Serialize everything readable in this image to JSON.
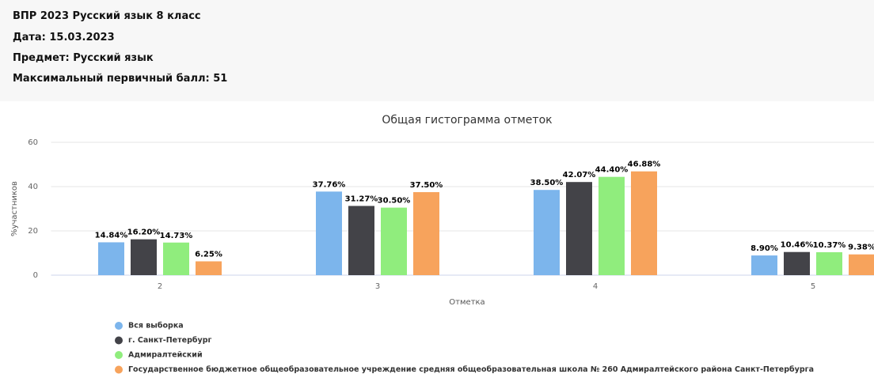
{
  "header": {
    "lines": [
      "ВПР 2023 Русский язык 8 класс",
      "Дата: 15.03.2023",
      "Предмет: Русский язык",
      "Максимальный первичный балл: 51"
    ]
  },
  "chart_data": {
    "type": "bar",
    "title": "Общая гистограмма отметок",
    "x_label": "Отметка",
    "y_label": "%участников",
    "categories": [
      "2",
      "3",
      "4",
      "5"
    ],
    "series": [
      {
        "name": "Вся выборка",
        "color": "#7cb5ec",
        "values": [
          14.84,
          37.76,
          38.5,
          8.9
        ],
        "value_labels": [
          "14.84%",
          "37.76%",
          "38.50%",
          "8.90%"
        ]
      },
      {
        "name": "г. Санкт-Петербург",
        "color": "#434348",
        "values": [
          16.2,
          31.27,
          42.07,
          10.46
        ],
        "value_labels": [
          "16.20%",
          "31.27%",
          "42.07%",
          "10.46%"
        ]
      },
      {
        "name": "Адмиралтейский",
        "color": "#90ed7d",
        "values": [
          14.73,
          30.5,
          44.4,
          10.37
        ],
        "value_labels": [
          "14.73%",
          "30.50%",
          "44.40%",
          "10.37%"
        ]
      },
      {
        "name": "Государственное бюджетное общеобразовательное учреждение средняя общеобразовательная школа № 260 Адмиралтейского района Санкт-Петербурга",
        "color": "#f7a35c",
        "values": [
          6.25,
          37.5,
          46.88,
          9.38
        ],
        "value_labels": [
          "6.25%",
          "37.50%",
          "46.88%",
          "9.38%"
        ]
      }
    ],
    "ylim": [
      0,
      60
    ],
    "yticks": [
      0,
      20,
      40,
      60
    ],
    "grid": true
  }
}
